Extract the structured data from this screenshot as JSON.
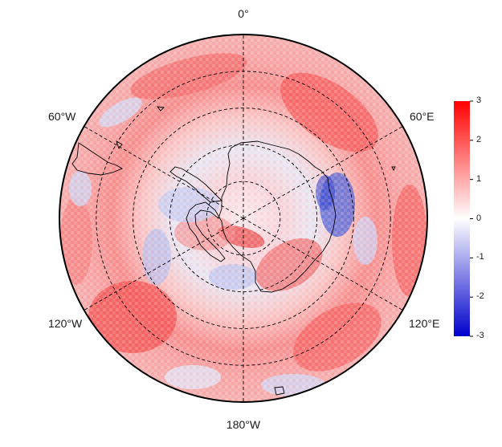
{
  "map": {
    "projection": "south-polar-stereographic",
    "graticule": {
      "meridians_deg": [
        0,
        60,
        120,
        180,
        240,
        300
      ],
      "parallels_deg_south": [
        80,
        70,
        60,
        50,
        40
      ],
      "style": "dashed"
    },
    "longitude_labels": {
      "top": "0°",
      "upper_left": "60°W",
      "upper_right": "60°E",
      "lower_left": "120°W",
      "lower_right": "120°E",
      "bottom": "180°W"
    },
    "field": {
      "description_shape": "diverging anomaly field, mostly positive in mid-latitudes, negative patches near Antarctic coast",
      "coast": "Antarctica and southern tip of South America outlined in black"
    }
  },
  "colorbar": {
    "min": -3,
    "max": 3,
    "ticks": [
      "3",
      "2",
      "1",
      "0",
      "-1",
      "-2",
      "-3"
    ],
    "colors": {
      "low": "#0000cc",
      "mid": "#ffffff",
      "high": "#ff0000"
    }
  }
}
